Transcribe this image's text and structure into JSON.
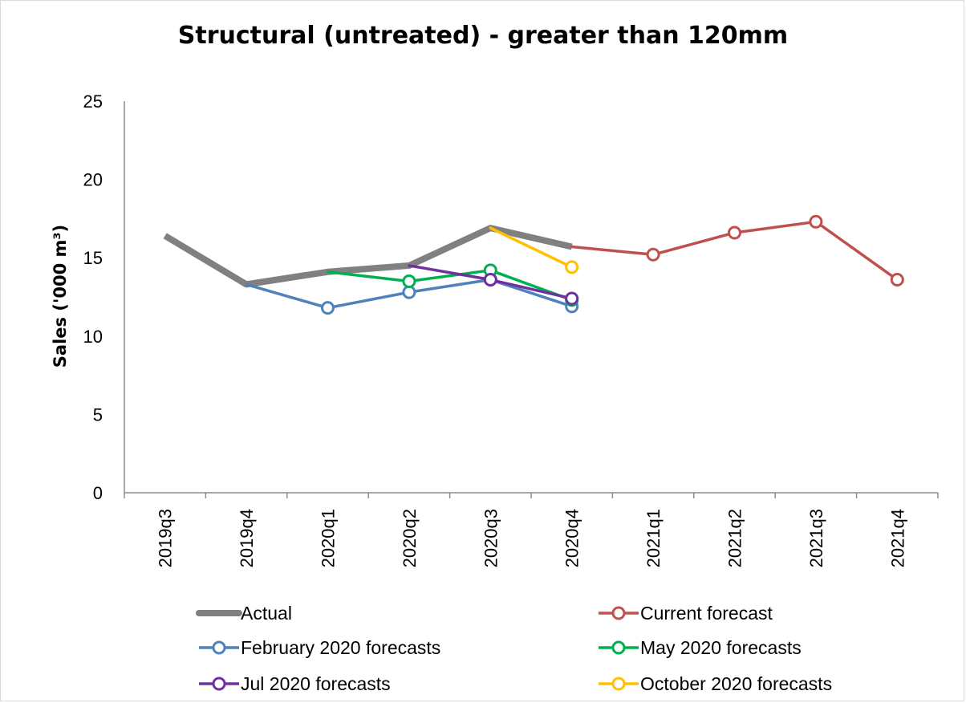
{
  "chart_data": {
    "type": "line",
    "title": "Structural (untreated) -  greater than 120mm",
    "xlabel": "",
    "ylabel": "Sales ('000 m³)",
    "ylim": [
      0,
      25
    ],
    "yticks": [
      0,
      5,
      10,
      15,
      20,
      25
    ],
    "grid": false,
    "legend_position": "bottom",
    "categories": [
      "2019q3",
      "2019q4",
      "2020q1",
      "2020q2",
      "2020q3",
      "2020q4",
      "2021q1",
      "2021q2",
      "2021q3",
      "2021q4"
    ],
    "series": [
      {
        "name": "Actual",
        "color": "#808080",
        "marker": "none",
        "values": [
          16.4,
          13.3,
          14.1,
          14.5,
          16.9,
          15.7,
          null,
          null,
          null,
          null
        ]
      },
      {
        "name": "Current forecast",
        "color": "#c0504d",
        "marker": "circle",
        "values": [
          null,
          null,
          null,
          null,
          null,
          15.7,
          15.2,
          16.6,
          17.3,
          13.6
        ]
      },
      {
        "name": "February 2020 forecasts",
        "color": "#4f81bd",
        "marker": "circle",
        "values": [
          null,
          13.3,
          11.8,
          12.8,
          13.6,
          11.9,
          null,
          null,
          null,
          null
        ]
      },
      {
        "name": "May 2020 forecasts",
        "color": "#00b050",
        "marker": "circle",
        "values": [
          null,
          null,
          14.1,
          13.5,
          14.2,
          12.3,
          null,
          null,
          null,
          null
        ]
      },
      {
        "name": "Jul 2020 forecasts",
        "color": "#7030a0",
        "marker": "circle",
        "values": [
          null,
          null,
          null,
          14.5,
          13.6,
          12.4,
          null,
          null,
          null,
          null
        ]
      },
      {
        "name": "October 2020 forecasts",
        "color": "#ffc000",
        "marker": "circle",
        "values": [
          null,
          null,
          null,
          null,
          16.9,
          14.4,
          null,
          null,
          null,
          null
        ]
      }
    ],
    "legend": {
      "layout": [
        [
          "Actual",
          "Current forecast"
        ],
        [
          "February 2020 forecasts",
          "May 2020 forecasts"
        ],
        [
          "Jul 2020 forecasts",
          "October 2020 forecasts"
        ]
      ]
    }
  }
}
